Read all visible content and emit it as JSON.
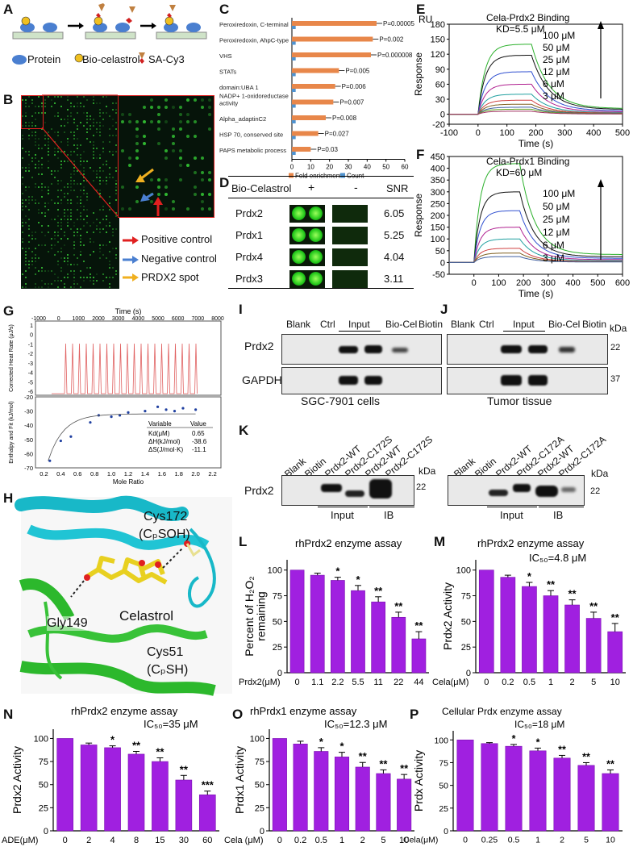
{
  "panels": {
    "A": {
      "label": "A",
      "protein": "Protein",
      "biocel": "Bio-celastrol",
      "sacy3": "SA-Cy3"
    },
    "B": {
      "label": "B",
      "legend": [
        "Positive control",
        "Negative control",
        "PRDX2 spot"
      ],
      "legend_colors": [
        "#e02020",
        "#4a7fd0",
        "#f0b020"
      ]
    },
    "C": {
      "label": "C",
      "terms": [
        "Peroxiredoxin, C-terminal",
        "Peroxiredoxin, AhpC-type",
        "VHS",
        "STATs",
        "domain:UBA 1",
        "NADP+ 1-oxidoreductase activity",
        "Alpha_adaptinC2",
        "HSP 70, conserved site",
        "PAPS metabolic process"
      ],
      "pvals": [
        "P=0.00005",
        "P=0.002",
        "P=0.000008",
        "P=0.005",
        "P=0.006",
        "P=0.007",
        "P=0.008",
        "P=0.027",
        "P=0.03"
      ],
      "fold": [
        45,
        43,
        42,
        25,
        23,
        22,
        18,
        14,
        10
      ],
      "count": [
        2,
        2,
        2,
        2,
        2,
        2,
        2,
        2,
        2
      ],
      "ticks": [
        "0",
        "10",
        "20",
        "30",
        "40",
        "50",
        "60"
      ],
      "legend": [
        "Fold enrichment",
        "Count"
      ],
      "colors": {
        "fold": "#e8874a",
        "count": "#4f93d0"
      }
    },
    "D": {
      "label": "D",
      "header": [
        "Bio-Celastrol",
        "+",
        "-",
        "SNR"
      ],
      "rows": [
        {
          "name": "Prdx2",
          "snr": "6.05"
        },
        {
          "name": "Prdx1",
          "snr": "5.25"
        },
        {
          "name": "Prdx4",
          "snr": "4.04"
        },
        {
          "name": "Prdx3",
          "snr": "3.11"
        }
      ]
    },
    "E": {
      "label": "E",
      "unit": "RU",
      "title": "Cela-Prdx2 Binding",
      "kd": "KD=5.5 μM",
      "yticks": [
        "180",
        "150",
        "120",
        "90",
        "60",
        "30",
        "0",
        "-20"
      ],
      "xticks": [
        "-100",
        "0",
        "100",
        "200",
        "300",
        "400",
        "500"
      ],
      "ylabel": "Response",
      "xlabel": "Time (s)",
      "concs": [
        "100 μM",
        "50 μM",
        "25 μM",
        "12 μM",
        "6 μM",
        "3 μM"
      ]
    },
    "F": {
      "label": "F",
      "title": "Cela-Prdx1 Binding",
      "kd": "KD=60 μM",
      "yticks": [
        "450",
        "400",
        "350",
        "300",
        "250",
        "200",
        "150",
        "100",
        "50",
        "0",
        "-50"
      ],
      "xticks": [
        "0",
        "100",
        "200",
        "300",
        "400",
        "500",
        "600"
      ],
      "ylabel": "Response",
      "xlabel": "Time (s)",
      "concs": [
        "100 μM",
        "50 μM",
        "25 μM",
        "12 μM",
        "6 μM",
        "3 μM"
      ]
    },
    "G": {
      "label": "G",
      "time": "Time (s)",
      "top_xticks": [
        "-1000",
        "0",
        "1000",
        "2000",
        "3000",
        "4000",
        "5000",
        "6000",
        "7000",
        "8000"
      ],
      "top_yticks": [
        "1",
        "0",
        "-1",
        "-2",
        "-3",
        "-4",
        "-5",
        "-6"
      ],
      "top_ylabel": "Corrected Heat Rate (μJ/s)",
      "bot_yticks": [
        "-20",
        "-30",
        "-40",
        "-50",
        "-60",
        "-70"
      ],
      "bot_ylabel": "Enthalpy and Fit (kJ/mol)",
      "xticks": [
        "0.2",
        "0.4",
        "0.6",
        "0.8",
        "1.0",
        "1.2",
        "1.4",
        "1.6",
        "1.8",
        "2.0",
        "2.2"
      ],
      "xlabel": "Mole Ratio",
      "table": {
        "h": [
          "Variable",
          "Value"
        ],
        "rows": [
          [
            "Kd(μM)",
            "0.65"
          ],
          [
            "ΔH(kJ/mol)",
            "-38.6"
          ],
          [
            "ΔS(J/mol·K)",
            "-11.1"
          ]
        ]
      }
    },
    "H": {
      "label": "H",
      "cys172": "Cys172",
      "cys172b": "(CₚSOH)",
      "gly": "Gly149",
      "cel": "Celastrol",
      "cys51": "Cys51",
      "cys51b": "(CₚSH)"
    },
    "I": {
      "label": "I",
      "cols": [
        "Blank",
        "Ctrl",
        "Input",
        "Bio-Cel",
        "Biotin"
      ],
      "rows": [
        "Prdx2",
        "GAPDH"
      ],
      "caption": "SGC-7901 cells"
    },
    "J": {
      "label": "J",
      "cols": [
        "Blank",
        "Ctrl",
        "Input",
        "Bio-Cel",
        "Biotin"
      ],
      "kda": "kDa",
      "mw": [
        "22",
        "37"
      ],
      "caption": "Tumor tissue"
    },
    "K": {
      "label": "K",
      "left_cols": [
        "Blank",
        "Biotin",
        "Prdx2-WT",
        "Prdx2-C172S",
        "Prdx2-WT",
        "Prdx2-C172S"
      ],
      "right_cols": [
        "Blank",
        "Biotin",
        "Prdx2-WT",
        "Prdx2-C172A",
        "Prdx2-WT",
        "Prdx2-C172A"
      ],
      "row": "Prdx2",
      "kda": "kDa",
      "mw": "22",
      "groups": [
        "Input",
        "IB"
      ]
    },
    "L": {
      "label": "L",
      "title": "rhPrdx2 enzyme assay",
      "ylabel": "Percent of H₂O₂ remaining",
      "xname": "Prdx2(μM)",
      "cats": [
        "0",
        "1.1",
        "2.2",
        "5.5",
        "11",
        "22",
        "44"
      ],
      "values": [
        100,
        95,
        90,
        80,
        69,
        54,
        33
      ],
      "errs": [
        0,
        2,
        3,
        5,
        5,
        5,
        7
      ],
      "stars": [
        "",
        "",
        "*",
        "*",
        "**",
        "**",
        "**"
      ],
      "yticks": [
        "0",
        "25",
        "50",
        "75",
        "100"
      ]
    },
    "M": {
      "label": "M",
      "title": "rhPrdx2 enzyme assay",
      "ic50": "IC₅₀=4.8 μM",
      "ylabel": "Prdx2 Activity",
      "xname": "Cela(μM)",
      "cats": [
        "0",
        "0.2",
        "0.5",
        "1",
        "2",
        "5",
        "10"
      ],
      "values": [
        100,
        93,
        84,
        75,
        66,
        53,
        40
      ],
      "errs": [
        0,
        2,
        4,
        5,
        5,
        6,
        8
      ],
      "stars": [
        "",
        "",
        "*",
        "**",
        "**",
        "**",
        "**"
      ],
      "yticks": [
        "0",
        "25",
        "50",
        "75",
        "100"
      ]
    },
    "N": {
      "label": "N",
      "title": "rhPrdx2 enzyme assay",
      "ic50": "IC₅₀=35 μM",
      "ylabel": "Prdx2 Activity",
      "xname": "ADE(μM)",
      "cats": [
        "0",
        "2",
        "4",
        "8",
        "15",
        "30",
        "60"
      ],
      "values": [
        100,
        93,
        90,
        83,
        75,
        55,
        39
      ],
      "errs": [
        0,
        2,
        2,
        3,
        4,
        5,
        4
      ],
      "stars": [
        "",
        "",
        "*",
        "**",
        "**",
        "**",
        "***"
      ],
      "yticks": [
        "0",
        "25",
        "50",
        "75",
        "100"
      ]
    },
    "O": {
      "label": "O",
      "title": "rhPrdx1 enzyme assay",
      "ic50": "IC₅₀=12.3 μM",
      "ylabel": "Prdx1 Activity",
      "xname": "Cela (μM)",
      "cats": [
        "0",
        "0.2",
        "0.5",
        "1",
        "2",
        "5",
        "10"
      ],
      "values": [
        100,
        94,
        86,
        80,
        69,
        62,
        56
      ],
      "errs": [
        0,
        3,
        4,
        5,
        5,
        4,
        5
      ],
      "stars": [
        "",
        "",
        "*",
        "*",
        "**",
        "**",
        "**"
      ],
      "yticks": [
        "0",
        "25",
        "50",
        "75",
        "100"
      ]
    },
    "P": {
      "label": "P",
      "title": "Cellular Prdx enzyme assay",
      "ic50": "IC₅₀=18 μM",
      "ylabel": "Prdx Activity",
      "xname": "Cela(μM)",
      "cats": [
        "0",
        "0.25",
        "0.5",
        "1",
        "2",
        "5",
        "10"
      ],
      "values": [
        100,
        96,
        93,
        88,
        80,
        72,
        63
      ],
      "errs": [
        0,
        1,
        2,
        3,
        3,
        3,
        4
      ],
      "stars": [
        "",
        "",
        "*",
        "*",
        "**",
        "**",
        "**"
      ],
      "yticks": [
        "0",
        "25",
        "50",
        "75",
        "100"
      ]
    }
  },
  "chart_data": [
    {
      "type": "bar",
      "id": "C",
      "categories": [
        "Peroxiredoxin, C-terminal",
        "Peroxiredoxin, AhpC-type",
        "VHS",
        "STATs",
        "domain:UBA 1",
        "NADP+ 1-oxidoreductase activity",
        "Alpha_adaptinC2",
        "HSP 70, conserved site",
        "PAPS metabolic process"
      ],
      "series": [
        {
          "name": "Fold enrichment",
          "values": [
            45,
            43,
            42,
            25,
            23,
            22,
            18,
            14,
            10
          ]
        },
        {
          "name": "Count",
          "values": [
            2,
            2,
            2,
            2,
            2,
            2,
            2,
            2,
            2
          ]
        }
      ],
      "xlim": [
        0,
        60
      ]
    },
    {
      "type": "bar",
      "id": "L",
      "categories": [
        "0",
        "1.1",
        "2.2",
        "5.5",
        "11",
        "22",
        "44"
      ],
      "values": [
        100,
        95,
        90,
        80,
        69,
        54,
        33
      ],
      "ylim": [
        0,
        110
      ]
    },
    {
      "type": "bar",
      "id": "M",
      "categories": [
        "0",
        "0.2",
        "0.5",
        "1",
        "2",
        "5",
        "10"
      ],
      "values": [
        100,
        93,
        84,
        75,
        66,
        53,
        40
      ],
      "ylim": [
        0,
        110
      ]
    },
    {
      "type": "bar",
      "id": "N",
      "categories": [
        "0",
        "2",
        "4",
        "8",
        "15",
        "30",
        "60"
      ],
      "values": [
        100,
        93,
        90,
        83,
        75,
        55,
        39
      ],
      "ylim": [
        0,
        110
      ]
    },
    {
      "type": "bar",
      "id": "O",
      "categories": [
        "0",
        "0.2",
        "0.5",
        "1",
        "2",
        "5",
        "10"
      ],
      "values": [
        100,
        94,
        86,
        80,
        69,
        62,
        56
      ],
      "ylim": [
        0,
        110
      ]
    },
    {
      "type": "bar",
      "id": "P",
      "categories": [
        "0",
        "0.25",
        "0.5",
        "1",
        "2",
        "5",
        "10"
      ],
      "values": [
        100,
        96,
        93,
        88,
        80,
        72,
        63
      ],
      "ylim": [
        0,
        110
      ]
    }
  ]
}
